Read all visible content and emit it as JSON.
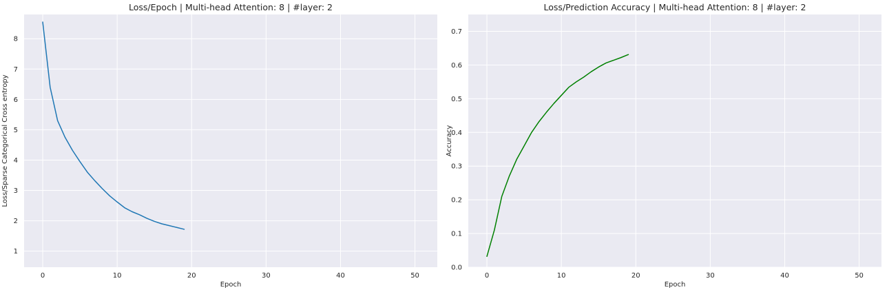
{
  "chart_data": [
    {
      "type": "line",
      "title": "Loss/Epoch | Multi-head Attention: 8 | #layer: 2",
      "xlabel": "Epoch",
      "ylabel": "Loss/Sparse Categorical Cross entropy",
      "xlim": [
        -2.5,
        53
      ],
      "ylim": [
        0.47,
        8.8
      ],
      "xticks": [
        0,
        10,
        20,
        30,
        40,
        50
      ],
      "yticks": [
        1,
        2,
        3,
        4,
        5,
        6,
        7,
        8
      ],
      "grid": true,
      "color": "#1f77b4",
      "x": [
        0,
        1,
        2,
        3,
        4,
        5,
        6,
        7,
        8,
        9,
        10,
        11,
        12,
        13,
        14,
        15,
        16,
        17,
        18,
        19
      ],
      "y": [
        8.55,
        6.4,
        5.3,
        4.75,
        4.32,
        3.95,
        3.6,
        3.32,
        3.06,
        2.82,
        2.62,
        2.43,
        2.3,
        2.2,
        2.08,
        1.98,
        1.9,
        1.84,
        1.78,
        1.72
      ]
    },
    {
      "type": "line",
      "title": "Loss/Prediction Accuracy | Multi-head Attention: 8 | #layer: 2",
      "xlabel": "Epoch",
      "ylabel": "Accuracy",
      "xlim": [
        -2.5,
        53
      ],
      "ylim": [
        0,
        0.75
      ],
      "xticks": [
        0,
        10,
        20,
        30,
        40,
        50
      ],
      "yticks": [
        0.0,
        0.1,
        0.2,
        0.3,
        0.4,
        0.5,
        0.6,
        0.7
      ],
      "grid": true,
      "color": "#008000",
      "x": [
        0,
        1,
        2,
        3,
        4,
        5,
        6,
        7,
        8,
        9,
        10,
        11,
        12,
        13,
        14,
        15,
        16,
        17,
        18,
        19
      ],
      "y": [
        0.032,
        0.11,
        0.21,
        0.27,
        0.32,
        0.36,
        0.4,
        0.432,
        0.46,
        0.486,
        0.51,
        0.534,
        0.55,
        0.564,
        0.58,
        0.594,
        0.606,
        0.614,
        0.622,
        0.631
      ]
    }
  ]
}
